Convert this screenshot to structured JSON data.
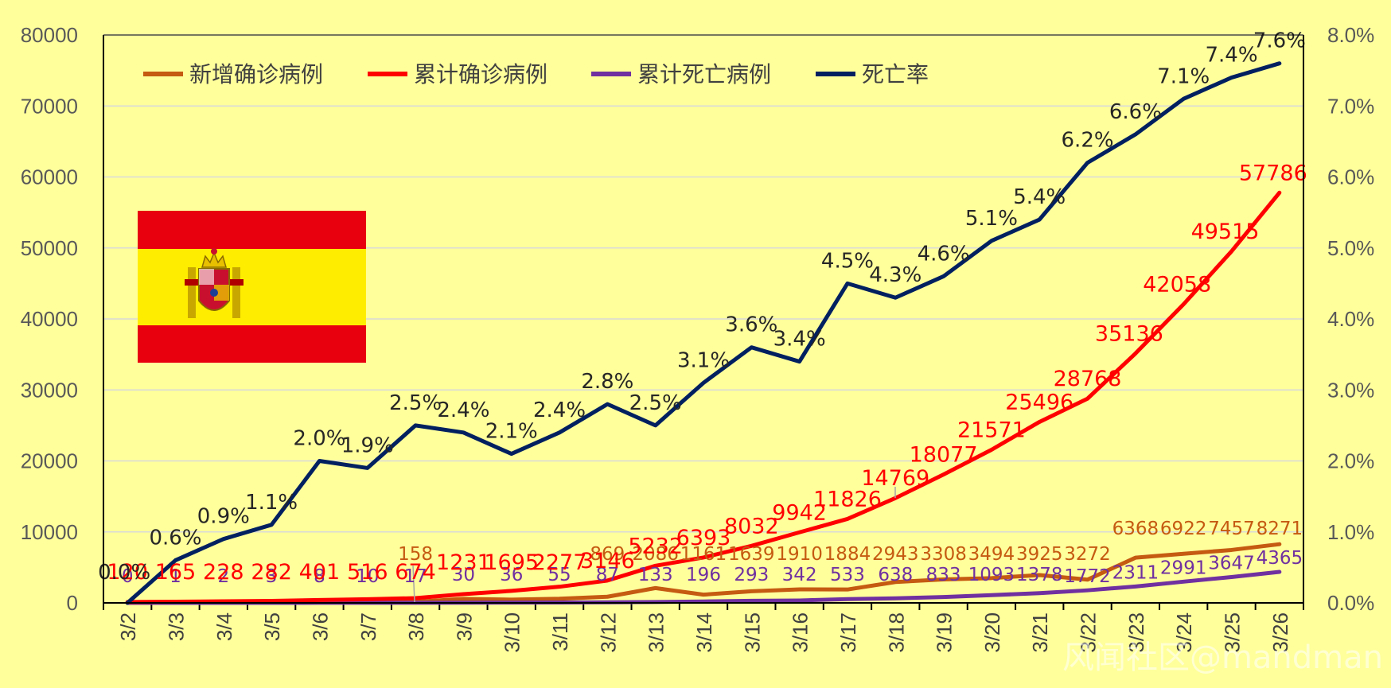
{
  "chart_data": {
    "type": "line",
    "title": "",
    "flag": "Spain",
    "watermark": "风闻社区@mandman",
    "categories": [
      "3/2",
      "3/3",
      "3/4",
      "3/5",
      "3/6",
      "3/7",
      "3/8",
      "3/9",
      "3/10",
      "3/11",
      "3/12",
      "3/13",
      "3/14",
      "3/15",
      "3/16",
      "3/17",
      "3/18",
      "3/19",
      "3/20",
      "3/21",
      "3/22",
      "3/23",
      "3/24",
      "3/25",
      "3/26"
    ],
    "left_axis": {
      "min": 0,
      "max": 80000,
      "step": 10000,
      "ticks": [
        "0",
        "10000",
        "20000",
        "30000",
        "40000",
        "50000",
        "60000",
        "70000",
        "80000"
      ]
    },
    "right_axis": {
      "min": 0,
      "max": 8.0,
      "step": 1.0,
      "ticks": [
        "0.0%",
        "1.0%",
        "2.0%",
        "3.0%",
        "4.0%",
        "5.0%",
        "6.0%",
        "7.0%",
        "8.0%"
      ]
    },
    "series": [
      {
        "name": "新增确诊病例",
        "axis": "left",
        "color": "#C55A11",
        "values": [
          null,
          null,
          null,
          null,
          null,
          null,
          158,
          null,
          null,
          null,
          869,
          2086,
          1161,
          1639,
          1910,
          1884,
          2943,
          3308,
          3494,
          3925,
          3272,
          6368,
          6922,
          7457,
          8271
        ],
        "labels": [
          "",
          "",
          "",
          "",
          "",
          "",
          "158",
          "",
          "",
          "",
          "869",
          "2086",
          "1161",
          "1639",
          "1910",
          "1884",
          "2943",
          "3308",
          "3494",
          "3925",
          "3272",
          "6368",
          "6922",
          "7457",
          "8271"
        ]
      },
      {
        "name": "累计确诊病例",
        "axis": "left",
        "color": "#FF0000",
        "values": [
          120,
          165,
          228,
          282,
          401,
          516,
          674,
          1231,
          1695,
          2277,
          3146,
          5232,
          6393,
          8032,
          9942,
          11826,
          14769,
          18077,
          21571,
          25496,
          28768,
          35136,
          42058,
          49515,
          57786
        ],
        "labels": [
          "120",
          "165",
          "228",
          "282",
          "401",
          "516",
          "674",
          "1231",
          "1695",
          "2277",
          "3146",
          "5232",
          "6393",
          "8032",
          "9942",
          "11826",
          "14769",
          "18077",
          "21571",
          "25496",
          "28768",
          "35136",
          "42058",
          "49515",
          "57786"
        ]
      },
      {
        "name": "累计死亡病例",
        "axis": "left",
        "color": "#7030A0",
        "values": [
          0,
          1,
          2,
          3,
          8,
          10,
          17,
          30,
          36,
          55,
          87,
          133,
          196,
          293,
          342,
          533,
          638,
          833,
          1093,
          1378,
          1772,
          2311,
          2991,
          3647,
          4365
        ],
        "labels": [
          "0",
          "1",
          "2",
          "3",
          "8",
          "10",
          "17",
          "30",
          "36",
          "55",
          "87",
          "133",
          "196",
          "293",
          "342",
          "533",
          "638",
          "833",
          "1093",
          "1378",
          "1772",
          "2311",
          "2991",
          "3647",
          "4365"
        ]
      },
      {
        "name": "死亡率",
        "axis": "right",
        "color": "#002060",
        "values": [
          0.0,
          0.6,
          0.9,
          1.1,
          2.0,
          1.9,
          2.5,
          2.4,
          2.1,
          2.4,
          2.8,
          2.5,
          3.1,
          3.6,
          3.4,
          4.5,
          4.3,
          4.6,
          5.1,
          5.4,
          6.2,
          6.6,
          7.1,
          7.4,
          7.6
        ],
        "labels": [
          "0.0%",
          "0.6%",
          "0.9%",
          "1.1%",
          "2.0%",
          "1.9%",
          "2.5%",
          "2.4%",
          "2.1%",
          "2.4%",
          "2.8%",
          "2.5%",
          "3.1%",
          "3.6%",
          "3.4%",
          "4.5%",
          "4.3%",
          "4.6%",
          "5.1%",
          "5.4%",
          "6.2%",
          "6.6%",
          "7.1%",
          "7.4%",
          "7.6%"
        ]
      }
    ],
    "legend_position": "top-left",
    "grid": true
  }
}
